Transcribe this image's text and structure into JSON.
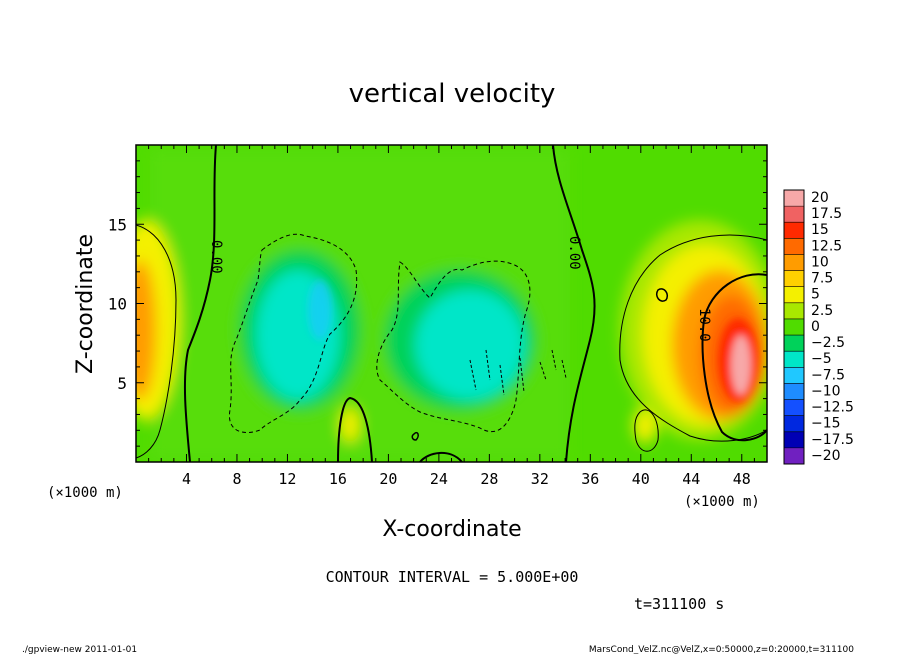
{
  "chart_data": {
    "type": "heatmap",
    "title": "vertical velocity",
    "xlabel": "X-coordinate",
    "ylabel": "Z-coordinate",
    "x_unit": "(×1000 m)",
    "y_unit": "(×1000 m)",
    "xlim": [
      0,
      50
    ],
    "ylim": [
      0,
      20
    ],
    "x_ticks": [
      4,
      8,
      12,
      16,
      20,
      24,
      28,
      32,
      36,
      40,
      44,
      48
    ],
    "y_ticks": [
      5,
      10,
      15
    ],
    "contour_interval_text": "CONTOUR INTERVAL = 5.000E+00",
    "time_text": "t=311100 s",
    "contour_labels": [
      "0.00",
      "0.00",
      "10.0"
    ],
    "colorbar": {
      "levels": [
        "20",
        "17.5",
        "15",
        "12.5",
        "10",
        "7.5",
        "5",
        "2.5",
        "0",
        "−2.5",
        "−5",
        "−7.5",
        "−10",
        "−12.5",
        "−15",
        "−17.5",
        "−20"
      ],
      "colors": [
        "#f7a8a8",
        "#f06262",
        "#ff2a00",
        "#ff6a00",
        "#ff9c00",
        "#ffd000",
        "#f4f000",
        "#a8e800",
        "#50dc00",
        "#00d25a",
        "#00e6c8",
        "#20c8ff",
        "#1e8cff",
        "#1450ff",
        "#0028e0",
        "#0000b4",
        "#7020c0"
      ]
    }
  },
  "footer": {
    "left": "./gpview-new  2011-01-01",
    "right": "MarsCond_VelZ.nc@VelZ,x=0:50000,z=0:20000,t=311100"
  }
}
